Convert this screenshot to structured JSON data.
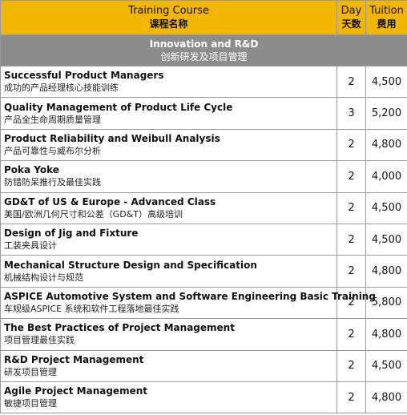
{
  "header": {
    "course_en": "Training Course",
    "course_zh": "课程名称",
    "day_en": "Day",
    "day_zh": "天数",
    "tuition_en": "Tuition",
    "tuition_zh": "费用"
  },
  "section": {
    "title_en": "Innovation and R&D",
    "title_zh": "创新研发及项目管理"
  },
  "courses": [
    {
      "en": "Successful Product Managers",
      "zh": "成功的产品经理核心技能训练",
      "day": "2",
      "tuition": "4,500"
    },
    {
      "en": "Quality Management of Product Life Cycle",
      "zh": "产品全生命周期质量管理",
      "day": "3",
      "tuition": "5,200"
    },
    {
      "en": "Product Reliability and Weibull Analysis",
      "zh": "产品可靠性与威布尔分析",
      "day": "2",
      "tuition": "4,800"
    },
    {
      "en": "Poka Yoke",
      "zh": "防错防呆推行及最佳实践",
      "day": "2",
      "tuition": "4,000"
    },
    {
      "en": "GD&T of US & Europe - Advanced Class",
      "zh": "美国/欧洲几何尺寸和公差（GD&T）高级培训",
      "day": "2",
      "tuition": "4,500"
    },
    {
      "en": "Design of Jig and Fixture",
      "zh": "工装夹具设计",
      "day": "2",
      "tuition": "4,500"
    },
    {
      "en": "Mechanical Structure Design and Specification",
      "zh": "机械结构设计与规范",
      "day": "2",
      "tuition": "4,800"
    },
    {
      "en": "ASPICE Automotive System and Software Engineering Basic Training",
      "zh": "车规级ASPICE 系统和软件工程落地最佳实践",
      "day": "2",
      "tuition": "5,800"
    },
    {
      "en": "The Best Practices of Project Management",
      "zh": "项目管理最佳实践",
      "day": "2",
      "tuition": "4,800"
    },
    {
      "en": "R&D Project Management",
      "zh": "研发项目管理",
      "day": "2",
      "tuition": "4,500"
    },
    {
      "en": "Agile Project Management",
      "zh": "敏捷项目管理",
      "day": "2",
      "tuition": "4,800"
    }
  ],
  "colors": {
    "header_bg": "#f2b500",
    "section_bg": "#8c8c8c",
    "grid": "#9a9a9a"
  }
}
